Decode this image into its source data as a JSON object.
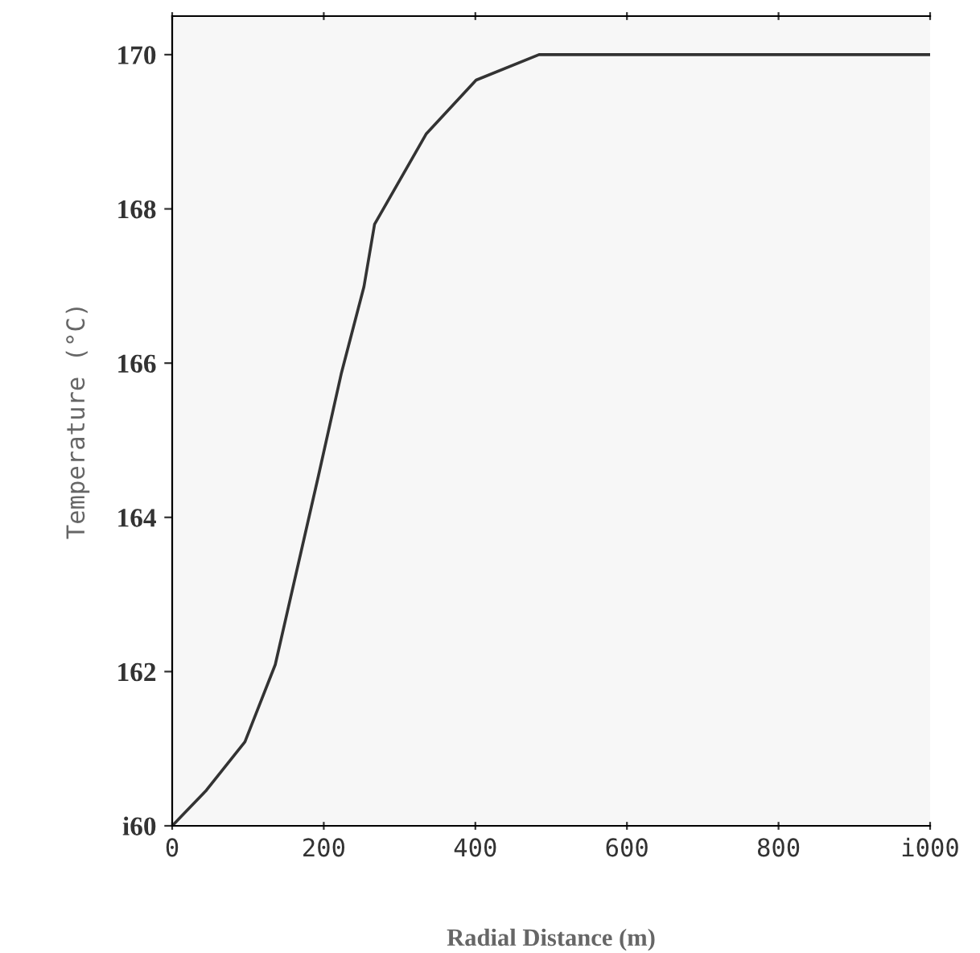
{
  "chart_data": {
    "type": "line",
    "xlabel": "Radial Distance (m)",
    "ylabel": "Temperature (°C)",
    "x": [
      0,
      45,
      96,
      136,
      193,
      223,
      253,
      267,
      335,
      401,
      484,
      600,
      800,
      1000
    ],
    "series": [
      {
        "color": "#333333",
        "values": [
          160,
          160.46,
          161.09,
          162.09,
          164.54,
          165.86,
          166.99,
          167.8,
          168.97,
          169.67,
          170,
          170,
          170,
          170
        ]
      }
    ],
    "xlim": [
      0,
      1000
    ],
    "ylim": [
      160,
      170.5
    ],
    "xticks": [
      0,
      200,
      400,
      600,
      800,
      {
        "value": 1000,
        "label": "i000"
      }
    ],
    "yticks": [
      {
        "value": 160,
        "label": "i60"
      },
      162,
      164,
      166,
      168,
      170
    ],
    "grid": false,
    "marker": "none",
    "line_style": "solid"
  }
}
